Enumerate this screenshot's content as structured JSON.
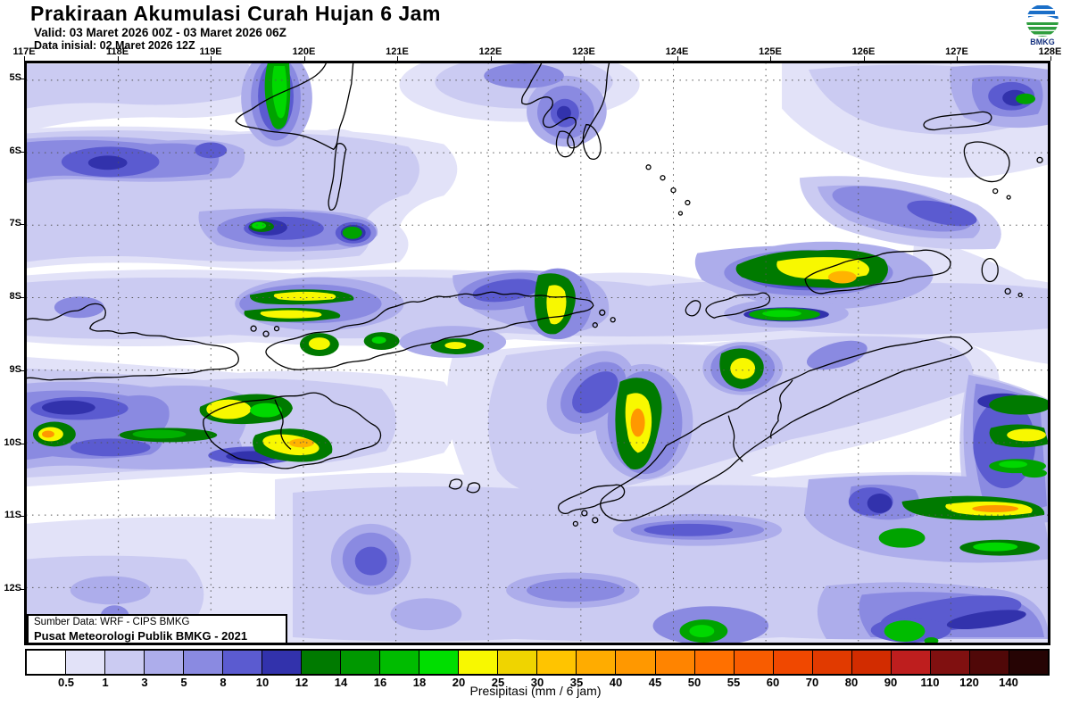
{
  "header": {
    "title": "Prakiraan Akumulasi Curah Hujan 6 Jam",
    "valid": "Valid: 03 Maret 2026 00Z - 03 Maret 2026 06Z",
    "init": "Data inisial: 02 Maret 2026 12Z"
  },
  "logo": {
    "label": "BMKG",
    "blue": "#1B6FC8",
    "green": "#2E9E3E",
    "text_color": "#16327F"
  },
  "map": {
    "lon_labels": [
      "117E",
      "118E",
      "119E",
      "120E",
      "121E",
      "122E",
      "123E",
      "124E",
      "125E",
      "126E",
      "127E",
      "128E"
    ],
    "lat_labels": [
      "5S",
      "6S",
      "7S",
      "8S",
      "9S",
      "10S",
      "11S",
      "12S"
    ],
    "source_line1": "Sumber Data: WRF - CIPS BMKG",
    "source_line2": "Pusat Meteorologi Publik BMKG - 2021"
  },
  "colorbar": {
    "caption": "Presipitasi (mm / 6 jam)",
    "tick_labels": [
      "0.5",
      "1",
      "3",
      "5",
      "8",
      "10",
      "12",
      "14",
      "16",
      "18",
      "20",
      "25",
      "30",
      "35",
      "40",
      "45",
      "50",
      "55",
      "60",
      "70",
      "80",
      "90",
      "110",
      "120",
      "140"
    ],
    "segment_colors": [
      "#FFFFFF",
      "#E2E2F8",
      "#CBCBF2",
      "#ADADEB",
      "#8A8AE1",
      "#5B5BD0",
      "#3232AC",
      "#007A00",
      "#009800",
      "#00BC00",
      "#00DE00",
      "#F8F800",
      "#EFD400",
      "#FFC400",
      "#FFAC00",
      "#FF9800",
      "#FF8400",
      "#FF7000",
      "#F85C00",
      "#F04800",
      "#E13A00",
      "#D22C00",
      "#BE1E1E",
      "#801010",
      "#500808",
      "#260404"
    ],
    "levels_mm": [
      0.5,
      1,
      3,
      5,
      8,
      10,
      12,
      14,
      16,
      18,
      20,
      25,
      30,
      35,
      40,
      45,
      50,
      55,
      60,
      70,
      80,
      90,
      110,
      120,
      140
    ]
  }
}
